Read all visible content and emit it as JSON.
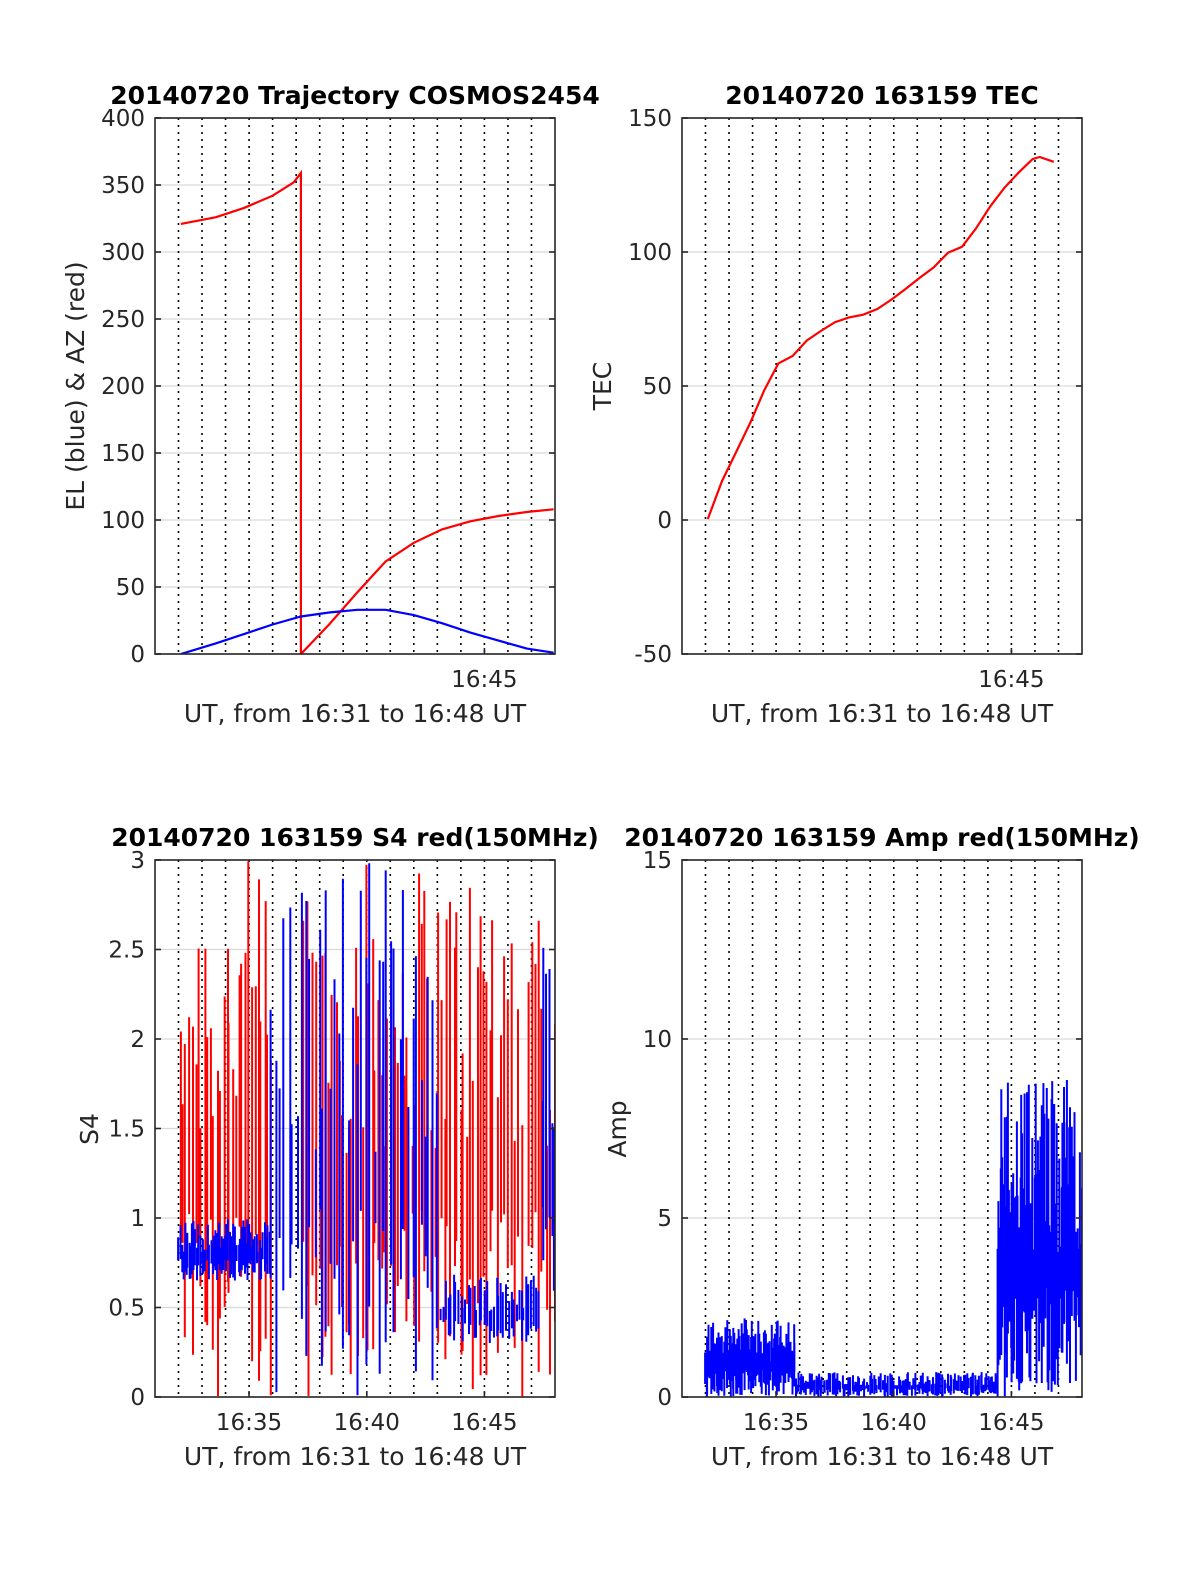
{
  "colors": {
    "el": "#0000ff",
    "az": "#ff0000",
    "grid": "#000000",
    "axis": "#262626"
  },
  "chart_data": [
    {
      "id": "traj",
      "type": "line",
      "title": "20140720 Trajectory COSMOS2454",
      "xlabel": "UT, from 16:31 to 16:48 UT",
      "ylabel": "EL (blue) & AZ (red)",
      "xlim": [
        16.5167,
        16.8
      ],
      "ylim": [
        0,
        400
      ],
      "yticks": [
        0,
        50,
        100,
        150,
        200,
        250,
        300,
        350,
        400
      ],
      "ytick_labels": [
        "0",
        "50",
        "100",
        "150",
        "200",
        "250",
        "300",
        "350",
        "400"
      ],
      "xtick_labels": [
        "16:45"
      ],
      "xticks": [
        16.75
      ],
      "series": [
        {
          "legend_key": "AZ",
          "color": "#ff0000",
          "points": [
            [
              16.535,
              321
            ],
            [
              16.56,
              326
            ],
            [
              16.58,
              333
            ],
            [
              16.6,
              342
            ],
            [
              16.615,
              352
            ],
            [
              16.62,
              359
            ],
            [
              16.62,
              0
            ],
            [
              16.64,
              22
            ],
            [
              16.66,
              46
            ],
            [
              16.68,
              69
            ],
            [
              16.7,
              83
            ],
            [
              16.72,
              93
            ],
            [
              16.74,
              99
            ],
            [
              16.76,
              103
            ],
            [
              16.78,
              106
            ],
            [
              16.799,
              108
            ]
          ]
        },
        {
          "legend_key": "EL",
          "color": "#0000ff",
          "points": [
            [
              16.535,
              0
            ],
            [
              16.56,
              8
            ],
            [
              16.58,
              15
            ],
            [
              16.6,
              22
            ],
            [
              16.62,
              28
            ],
            [
              16.64,
              31
            ],
            [
              16.66,
              33
            ],
            [
              16.68,
              33
            ],
            [
              16.7,
              29
            ],
            [
              16.72,
              23
            ],
            [
              16.74,
              16
            ],
            [
              16.76,
              10
            ],
            [
              16.78,
              4
            ],
            [
              16.799,
              1
            ]
          ]
        }
      ]
    },
    {
      "id": "tec",
      "type": "line",
      "title": "20140720 163159 TEC",
      "xlabel": "UT, from 16:31 to 16:48 UT",
      "ylabel": "TEC",
      "xlim": [
        16.5167,
        16.8
      ],
      "ylim": [
        -50,
        150
      ],
      "yticks": [
        -50,
        0,
        50,
        100,
        150
      ],
      "ytick_labels": [
        "-50",
        "0",
        "50",
        "100",
        "150"
      ],
      "xtick_labels": [
        "16:45"
      ],
      "xticks": [
        16.75
      ],
      "series": [
        {
          "legend_key": "TEC",
          "color": "#ff0000",
          "points": [
            [
              16.535,
              0
            ],
            [
              16.545,
              15
            ],
            [
              16.555,
              25
            ],
            [
              16.565,
              35
            ],
            [
              16.575,
              48
            ],
            [
              16.585,
              58
            ],
            [
              16.595,
              62
            ],
            [
              16.605,
              66
            ],
            [
              16.615,
              70
            ],
            [
              16.625,
              73
            ],
            [
              16.635,
              75
            ],
            [
              16.645,
              77
            ],
            [
              16.655,
              78
            ],
            [
              16.665,
              83
            ],
            [
              16.675,
              86
            ],
            [
              16.685,
              91
            ],
            [
              16.695,
              95
            ],
            [
              16.705,
              99
            ],
            [
              16.715,
              101
            ],
            [
              16.725,
              108
            ],
            [
              16.735,
              118
            ],
            [
              16.745,
              124
            ],
            [
              16.755,
              129
            ],
            [
              16.765,
              135
            ],
            [
              16.77,
              136
            ],
            [
              16.78,
              134
            ]
          ]
        }
      ]
    },
    {
      "id": "s4",
      "type": "line",
      "title": "20140720 163159 S4 red(150MHz)",
      "xlabel": "UT, from 16:31 to 16:48 UT",
      "ylabel": "S4",
      "xlim": [
        16.5167,
        16.8
      ],
      "ylim": [
        0,
        3
      ],
      "yticks": [
        0,
        0.5,
        1,
        1.5,
        2,
        2.5,
        3
      ],
      "ytick_labels": [
        "0",
        "0.5",
        "1",
        "1.5",
        "2",
        "2.5",
        "3"
      ],
      "xtick_labels": [
        "16:35",
        "16:40",
        "16:45"
      ],
      "xticks": [
        16.5833,
        16.6667,
        16.75
      ],
      "series": [
        {
          "legend_key": "red",
          "color": "#ff0000",
          "segments": [
            {
              "x": [
                16.533,
                16.6
              ],
              "low": 0,
              "high": 3,
              "spikes": 30
            },
            {
              "x": [
                16.62,
                16.76
              ],
              "low": 0,
              "high": 3,
              "spikes": 60
            },
            {
              "x": [
                16.76,
                16.8
              ],
              "low": 0,
              "high": 3,
              "spikes": 15
            }
          ]
        },
        {
          "legend_key": "blue",
          "color": "#0000ff",
          "segments": [
            {
              "x": [
                16.533,
                16.598
              ],
              "low": 0.65,
              "high": 1.0,
              "spikes": 60
            },
            {
              "x": [
                16.598,
                16.718
              ],
              "low": 0,
              "high": 3,
              "spikes": 40
            },
            {
              "x": [
                16.718,
                16.79
              ],
              "low": 0.3,
              "high": 0.7,
              "spikes": 40
            },
            {
              "x": [
                16.79,
                16.8
              ],
              "low": 0.5,
              "high": 2.7,
              "spikes": 6
            }
          ]
        }
      ]
    },
    {
      "id": "amp",
      "type": "line",
      "title": "20140720 163159 Amp red(150MHz)",
      "xlabel": "UT, from 16:31 to 16:48 UT",
      "ylabel": "Amp",
      "xlim": [
        16.5167,
        16.8
      ],
      "ylim": [
        0,
        15
      ],
      "yticks": [
        0,
        5,
        10,
        15
      ],
      "ytick_labels": [
        "0",
        "5",
        "10",
        "15"
      ],
      "xtick_labels": [
        "16:35",
        "16:40",
        "16:45"
      ],
      "xticks": [
        16.5833,
        16.6667,
        16.75
      ],
      "series": [
        {
          "legend_key": "blue",
          "color": "#0000ff",
          "segments": [
            {
              "x": [
                16.533,
                16.597
              ],
              "low": 0,
              "high": 2.2,
              "spikes": 90
            },
            {
              "x": [
                16.597,
                16.74
              ],
              "low": 0,
              "high": 0.7,
              "spikes": 140
            },
            {
              "x": [
                16.74,
                16.8
              ],
              "low": 0,
              "high": 9.0,
              "spikes": 90
            }
          ]
        }
      ]
    }
  ]
}
